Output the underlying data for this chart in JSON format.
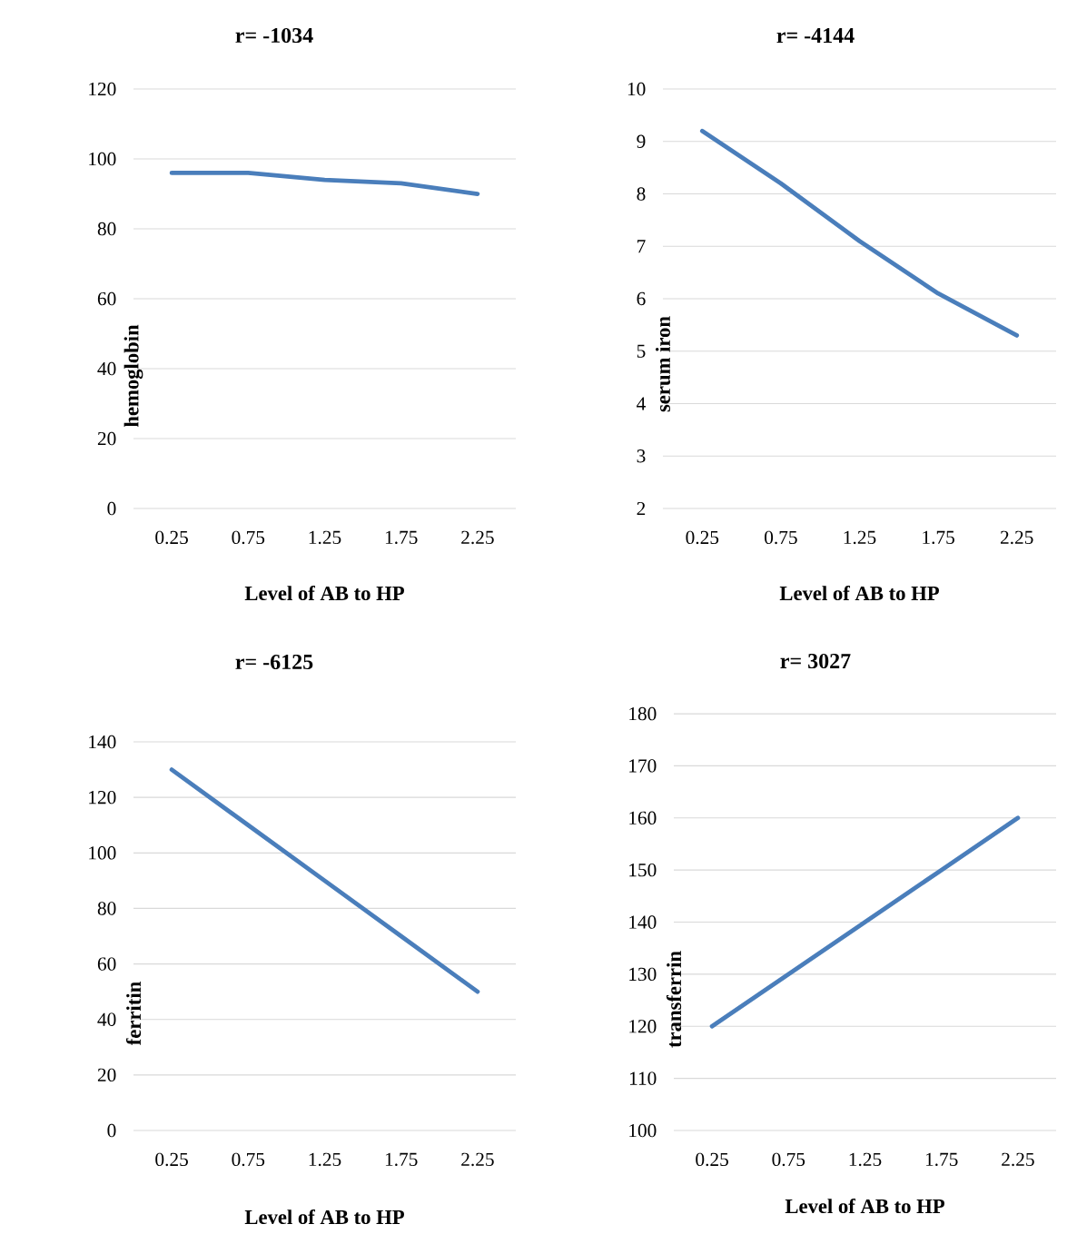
{
  "chart_data": [
    {
      "type": "line",
      "title": "r= -1034",
      "xlabel": "Level of AB to HP",
      "ylabel": "hemoglobin",
      "categories": [
        "0.25",
        "0.75",
        "1.25",
        "1.75",
        "2.25"
      ],
      "values": [
        96,
        96,
        94,
        93,
        90
      ],
      "color": "#4a7ebb",
      "ylim": [
        0,
        120
      ],
      "yticks": [
        0,
        20,
        40,
        60,
        80,
        100,
        120
      ],
      "grid": "y"
    },
    {
      "type": "line",
      "title": "r= -4144",
      "xlabel": "Level of AB to HP",
      "ylabel": "serum iron",
      "categories": [
        "0.25",
        "0.75",
        "1.25",
        "1.75",
        "2.25"
      ],
      "values": [
        9.2,
        8.2,
        7.1,
        6.1,
        5.3
      ],
      "color": "#4a7ebb",
      "ylim": [
        2,
        10
      ],
      "yticks": [
        2,
        3,
        4,
        5,
        6,
        7,
        8,
        9,
        10
      ],
      "grid": "y"
    },
    {
      "type": "line",
      "title": "r= -6125",
      "xlabel": "Level of AB to HP",
      "ylabel": "ferritin",
      "categories": [
        "0.25",
        "0.75",
        "1.25",
        "1.75",
        "2.25"
      ],
      "values": [
        130,
        110,
        90,
        70,
        50
      ],
      "color": "#4a7ebb",
      "ylim": [
        0,
        140
      ],
      "yticks": [
        0,
        20,
        40,
        60,
        80,
        100,
        120,
        140
      ],
      "grid": "y"
    },
    {
      "type": "line",
      "title": "r= 3027",
      "xlabel": "Level of AB to HP",
      "ylabel": "transferrin",
      "categories": [
        "0.25",
        "0.75",
        "1.25",
        "1.75",
        "2.25"
      ],
      "values": [
        120,
        130,
        140,
        150,
        160
      ],
      "color": "#4a7ebb",
      "ylim": [
        100,
        180
      ],
      "yticks": [
        100,
        110,
        120,
        130,
        140,
        150,
        160,
        170,
        180
      ],
      "grid": "y"
    }
  ]
}
